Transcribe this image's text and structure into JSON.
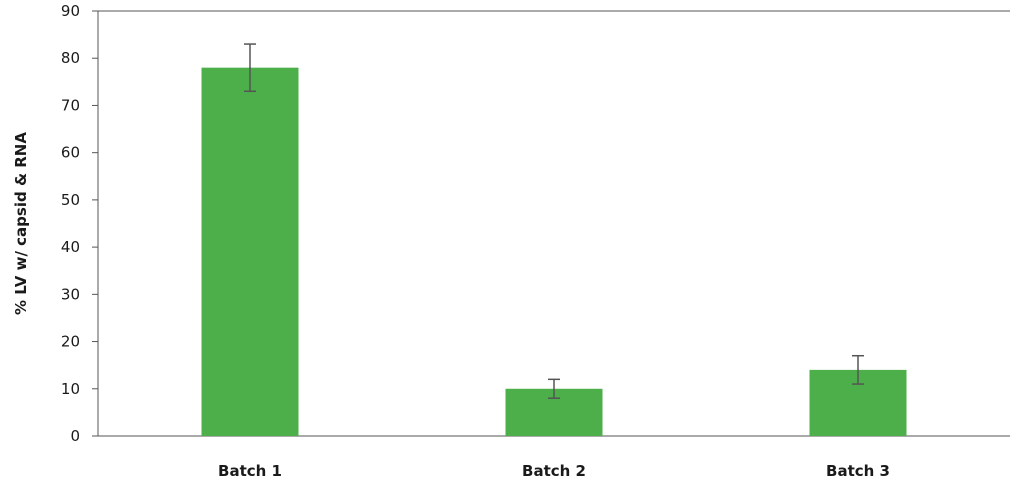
{
  "chart_data": {
    "type": "bar",
    "categories": [
      "Batch 1",
      "Batch 2",
      "Batch 3"
    ],
    "values": [
      78,
      10,
      14
    ],
    "error_bars": [
      {
        "low": 73,
        "high": 83
      },
      {
        "low": 8,
        "high": 12
      },
      {
        "low": 11,
        "high": 17
      }
    ],
    "title": "",
    "xlabel": "",
    "ylabel": "% LV w/ capsid & RNA",
    "ylim": [
      0,
      90
    ],
    "yticks": [
      0,
      10,
      20,
      30,
      40,
      50,
      60,
      70,
      80,
      90
    ],
    "grid": false,
    "legend": "none",
    "colors": {
      "bar": "#4caf4a",
      "axis": "#555555",
      "error_bar": "#555555"
    }
  }
}
